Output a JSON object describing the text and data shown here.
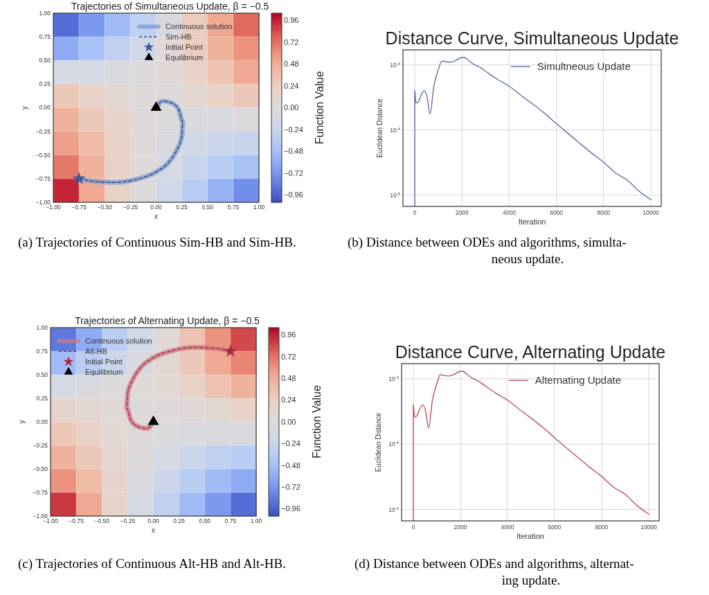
{
  "chart_data": [
    {
      "type": "heatmap",
      "title": "Trajectories of Simultaneous Update, β = −0.5",
      "xlabel": "x",
      "ylabel": "y",
      "clabel": "Function Value",
      "annotations": [
        "(a) Trajectories of Continuous Sim-HB and Sim-HB."
      ],
      "cells": [
        [
          -0.9,
          -0.7,
          -0.5,
          -0.3,
          -0.05,
          0.25,
          0.5,
          0.75
        ],
        [
          -0.6,
          -0.45,
          -0.3,
          -0.15,
          0.05,
          0.25,
          0.45,
          0.6
        ],
        [
          -0.1,
          -0.1,
          -0.05,
          0,
          0.05,
          0.2,
          0.35,
          0.5
        ],
        [
          0.3,
          0.2,
          0.1,
          0.03,
          0.02,
          0.1,
          0.2,
          0.3
        ],
        [
          0.45,
          0.3,
          0.15,
          0.03,
          -0.02,
          -0.05,
          -0.05,
          0
        ],
        [
          0.55,
          0.4,
          0.2,
          0.05,
          -0.05,
          -0.15,
          -0.2,
          -0.25
        ],
        [
          0.7,
          0.45,
          0.2,
          0.03,
          -0.1,
          -0.25,
          -0.35,
          -0.45
        ],
        [
          0.95,
          0.5,
          0.2,
          0,
          -0.15,
          -0.35,
          -0.55,
          -0.75
        ]
      ],
      "clim": [
        -1.04,
        1.04
      ],
      "cticks": [
        {
          "value": 0.96,
          "label": "0.96"
        },
        {
          "value": 0.72,
          "label": "0.72"
        },
        {
          "value": 0.48,
          "label": "0.48"
        },
        {
          "value": 0.24,
          "label": "0.24"
        },
        {
          "value": 0,
          "label": "0.00"
        },
        {
          "value": -0.24,
          "label": "−0.24"
        },
        {
          "value": -0.48,
          "label": "−0.48"
        },
        {
          "value": -0.72,
          "label": "−0.72"
        },
        {
          "value": -0.96,
          "label": "−0.96"
        }
      ],
      "xlim": [
        -1,
        1
      ],
      "ylim": [
        -1,
        1
      ],
      "xticks": [
        {
          "value": -1,
          "label": "−1.00"
        },
        {
          "value": -0.75,
          "label": "−0.75"
        },
        {
          "value": -0.5,
          "label": "−0.50"
        },
        {
          "value": -0.25,
          "label": "−0.25"
        },
        {
          "value": 0,
          "label": "0.00"
        },
        {
          "value": 0.25,
          "label": "0.25"
        },
        {
          "value": 0.5,
          "label": "0.50"
        },
        {
          "value": 0.75,
          "label": "0.75"
        },
        {
          "value": 1,
          "label": "1.00"
        }
      ],
      "yticks": [
        {
          "value": -1,
          "label": "−1.00"
        },
        {
          "value": -0.75,
          "label": "−0.75"
        },
        {
          "value": -0.5,
          "label": "−0.50"
        },
        {
          "value": -0.25,
          "label": "−0.25"
        },
        {
          "value": 0,
          "label": "0.00"
        },
        {
          "value": 0.25,
          "label": "0.25"
        },
        {
          "value": 0.5,
          "label": "0.50"
        },
        {
          "value": 0.75,
          "label": "0.75"
        },
        {
          "value": 1,
          "label": "1.00"
        }
      ],
      "grid": true,
      "legend": "top right",
      "series": [
        {
          "name": "Continuous solution",
          "type": "line",
          "line_style": "solid",
          "color": "#7f9fd0",
          "x": [
            -0.75,
            -0.6,
            -0.4,
            -0.2,
            0,
            0.12,
            0.2,
            0.25,
            0.26,
            0.22,
            0.15,
            0.07,
            0.03,
            0.02
          ],
          "values": [
            -0.75,
            -0.78,
            -0.79,
            -0.76,
            -0.68,
            -0.58,
            -0.45,
            -0.3,
            -0.15,
            -0.02,
            0.05,
            0.07,
            0.05,
            0.02
          ]
        },
        {
          "name": "Sim-HB",
          "type": "line",
          "line_style": "dashed",
          "color": "#2b3f70",
          "x": [
            -0.75,
            -0.6,
            -0.4,
            -0.2,
            0,
            0.12,
            0.2,
            0.25,
            0.26,
            0.22,
            0.15,
            0.07,
            0.03,
            0.02
          ],
          "values": [
            -0.75,
            -0.78,
            -0.79,
            -0.76,
            -0.68,
            -0.58,
            -0.45,
            -0.3,
            -0.15,
            -0.02,
            0.05,
            0.07,
            0.05,
            0.02
          ]
        },
        {
          "name": "Initial Point",
          "type": "scatter",
          "marker": "star",
          "color": "#3b5998",
          "x": [
            -0.75
          ],
          "values": [
            -0.75
          ]
        },
        {
          "name": "Equilibrium",
          "type": "scatter",
          "marker": "triangle",
          "color": "#000000",
          "x": [
            0
          ],
          "values": [
            0
          ]
        }
      ]
    },
    {
      "type": "line",
      "title": "Distance Curve, Simultaneous Update",
      "xlabel": "Iteration",
      "ylabel": "Euclidean Distance",
      "annotations": [
        "(b) Distance between ODEs and algorithms, simulta-\nneous update."
      ],
      "log": "y",
      "xlim": [
        -500,
        10440
      ],
      "ylim": [
        6.7e-06,
        0.0017
      ],
      "xticks": [
        0,
        2000,
        4000,
        6000,
        8000,
        10000
      ],
      "yticks": [
        {
          "value": 1e-05,
          "label": "10$^{-5}$"
        },
        {
          "value": 0.0001,
          "label": "10$^{-4}$"
        },
        {
          "value": 0.001,
          "label": "10$^{-3}$"
        }
      ],
      "grid": true,
      "legend": "top right",
      "series": [
        {
          "name": "Simultneous Update",
          "color": "#5a70a0",
          "x": [
            0,
            0,
            50,
            150,
            250,
            400,
            520,
            650,
            800,
            1000,
            1150,
            1300,
            1500,
            1700,
            2000,
            2100,
            2300,
            2500,
            2800,
            3000,
            3500,
            4000,
            4500,
            5000,
            5500,
            6000,
            6500,
            7000,
            7500,
            8000,
            8500,
            9000,
            9500,
            10000
          ],
          "values": [
            6.7e-06,
            0.0004,
            0.00026,
            0.00027,
            0.00033,
            0.0004,
            0.00032,
            0.000175,
            0.00045,
            0.00085,
            0.00115,
            0.00112,
            0.0011,
            0.00115,
            0.0013,
            0.0013,
            0.00115,
            0.00102,
            0.0009,
            0.0008,
            0.0006,
            0.00047,
            0.00034,
            0.00025,
            0.00018,
            0.000125,
            8.8e-05,
            6.2e-05,
            4.4e-05,
            3.2e-05,
            2.2e-05,
            1.7e-05,
            1.15e-05,
            8.5e-06
          ]
        }
      ]
    },
    {
      "type": "heatmap",
      "title": "Trajectories of Alternating Update, β = −0.5",
      "xlabel": "x",
      "ylabel": "y",
      "clabel": "Function Value",
      "annotations": [
        "(c) Trajectories of Continuous Alt-HB and Alt-HB."
      ],
      "cells": [
        [
          -0.85,
          -0.6,
          -0.35,
          -0.15,
          0.05,
          0.35,
          0.6,
          0.85
        ],
        [
          -0.5,
          -0.35,
          -0.2,
          -0.05,
          0.1,
          0.3,
          0.5,
          0.65
        ],
        [
          -0.1,
          -0.05,
          0,
          0.03,
          0.08,
          0.2,
          0.35,
          0.45
        ],
        [
          0.15,
          0.1,
          0.05,
          0.02,
          0.02,
          0.05,
          0.1,
          0.2
        ],
        [
          0.3,
          0.2,
          0.08,
          0.02,
          -0.02,
          -0.05,
          -0.05,
          -0.05
        ],
        [
          0.45,
          0.3,
          0.12,
          0,
          -0.1,
          -0.2,
          -0.3,
          -0.35
        ],
        [
          0.6,
          0.4,
          0.15,
          -0.05,
          -0.2,
          -0.35,
          -0.5,
          -0.6
        ],
        [
          0.9,
          0.5,
          0.15,
          -0.1,
          -0.3,
          -0.5,
          -0.7,
          -0.9
        ]
      ],
      "clim": [
        -1.04,
        1.04
      ],
      "cticks": [
        {
          "value": 0.96,
          "label": "0.96"
        },
        {
          "value": 0.72,
          "label": "0.72"
        },
        {
          "value": 0.48,
          "label": "0.48"
        },
        {
          "value": 0.24,
          "label": "0.24"
        },
        {
          "value": 0,
          "label": "0.00"
        },
        {
          "value": -0.24,
          "label": "−0.24"
        },
        {
          "value": -0.48,
          "label": "−0.48"
        },
        {
          "value": -0.72,
          "label": "−0.72"
        },
        {
          "value": -0.96,
          "label": "−0.96"
        }
      ],
      "xlim": [
        -1,
        1
      ],
      "ylim": [
        -1,
        1
      ],
      "xticks": [
        {
          "value": -1,
          "label": "−1.00"
        },
        {
          "value": -0.75,
          "label": "−0.75"
        },
        {
          "value": -0.5,
          "label": "−0.50"
        },
        {
          "value": -0.25,
          "label": "−0.25"
        },
        {
          "value": 0,
          "label": "0.00"
        },
        {
          "value": 0.25,
          "label": "0.25"
        },
        {
          "value": 0.5,
          "label": "0.50"
        },
        {
          "value": 0.75,
          "label": "0.75"
        },
        {
          "value": 1,
          "label": "1.00"
        }
      ],
      "yticks": [
        {
          "value": -1,
          "label": "−1.00"
        },
        {
          "value": -0.75,
          "label": "−0.75"
        },
        {
          "value": -0.5,
          "label": "−0.50"
        },
        {
          "value": -0.25,
          "label": "−0.25"
        },
        {
          "value": 0,
          "label": "0.00"
        },
        {
          "value": 0.25,
          "label": "0.25"
        },
        {
          "value": 0.5,
          "label": "0.50"
        },
        {
          "value": 0.75,
          "label": "0.75"
        },
        {
          "value": 1,
          "label": "1.00"
        }
      ],
      "grid": true,
      "legend": "top left",
      "series": [
        {
          "name": "Continuous solution",
          "type": "line",
          "line_style": "solid",
          "color": "#c9788a",
          "x": [
            0.75,
            0.6,
            0.4,
            0.2,
            0,
            -0.12,
            -0.2,
            -0.25,
            -0.26,
            -0.22,
            -0.15,
            -0.07,
            -0.03,
            -0.02
          ],
          "values": [
            0.75,
            0.78,
            0.79,
            0.76,
            0.68,
            0.58,
            0.45,
            0.3,
            0.15,
            0.02,
            -0.05,
            -0.07,
            -0.05,
            -0.02
          ]
        },
        {
          "name": "Alt-HB",
          "type": "line",
          "line_style": "dashed",
          "color": "#b0202c",
          "x": [
            0.75,
            0.6,
            0.4,
            0.2,
            0,
            -0.12,
            -0.2,
            -0.25,
            -0.26,
            -0.22,
            -0.15,
            -0.07,
            -0.03,
            -0.02
          ],
          "values": [
            0.75,
            0.78,
            0.79,
            0.76,
            0.68,
            0.58,
            0.45,
            0.3,
            0.15,
            0.02,
            -0.05,
            -0.07,
            -0.05,
            -0.02
          ]
        },
        {
          "name": "Initial Point",
          "type": "scatter",
          "marker": "star",
          "color": "#a52a40",
          "x": [
            0.75
          ],
          "values": [
            0.75
          ]
        },
        {
          "name": "Equilibrium",
          "type": "scatter",
          "marker": "triangle",
          "color": "#000000",
          "x": [
            0
          ],
          "values": [
            0
          ]
        }
      ]
    },
    {
      "type": "line",
      "title": "Distance Curve, Alternating Update",
      "xlabel": "Iteration",
      "ylabel": "Euclidean Distance",
      "annotations": [
        "(d) Distance between ODEs and algorithms, alternat-\ning update."
      ],
      "log": "y",
      "xlim": [
        -500,
        10440
      ],
      "ylim": [
        6.7e-06,
        0.0017
      ],
      "xticks": [
        0,
        2000,
        4000,
        6000,
        8000,
        10000
      ],
      "yticks": [
        {
          "value": 1e-05,
          "label": "10$^{-5}$"
        },
        {
          "value": 0.0001,
          "label": "10$^{-4}$"
        },
        {
          "value": 0.001,
          "label": "10$^{-3}$"
        }
      ],
      "grid": true,
      "legend": "top right",
      "series": [
        {
          "name": "Alternating Update",
          "color": "#b8505e",
          "x": [
            0,
            0,
            50,
            150,
            250,
            400,
            520,
            650,
            800,
            1000,
            1150,
            1300,
            1500,
            1700,
            2000,
            2100,
            2300,
            2500,
            2800,
            3000,
            3500,
            4000,
            4500,
            5000,
            5500,
            6000,
            6500,
            7000,
            7500,
            8000,
            8500,
            9000,
            9500,
            10000
          ],
          "values": [
            6.7e-06,
            0.0004,
            0.00026,
            0.00027,
            0.00033,
            0.0004,
            0.00032,
            0.000175,
            0.00045,
            0.00085,
            0.00115,
            0.00112,
            0.0011,
            0.00115,
            0.0013,
            0.0013,
            0.00115,
            0.00102,
            0.0009,
            0.0008,
            0.0006,
            0.00047,
            0.00034,
            0.00025,
            0.00018,
            0.000125,
            8.8e-05,
            6.2e-05,
            4.4e-05,
            3.2e-05,
            2.2e-05,
            1.7e-05,
            1.15e-05,
            8.5e-06
          ]
        }
      ]
    }
  ]
}
